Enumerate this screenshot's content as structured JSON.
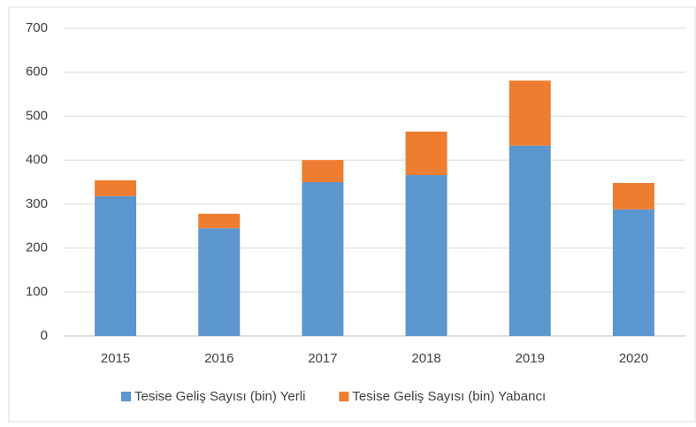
{
  "chart_data": {
    "type": "stacked_bar",
    "categories": [
      "2015",
      "2016",
      "2017",
      "2018",
      "2019",
      "2020"
    ],
    "series": [
      {
        "name": "Tesise Geliş Sayısı (bin) Yerli",
        "color": "#5b96cf",
        "values": [
          318,
          245,
          350,
          366,
          433,
          288
        ]
      },
      {
        "name": "Tesise Geliş Sayısı (bin) Yabancı",
        "color": "#ed7d31",
        "values": [
          36,
          33,
          50,
          99,
          148,
          60
        ]
      }
    ],
    "ylim": [
      0,
      700
    ],
    "yticks": [
      0,
      100,
      200,
      300,
      400,
      500,
      600,
      700
    ],
    "grid": true,
    "legend": "bottom"
  }
}
